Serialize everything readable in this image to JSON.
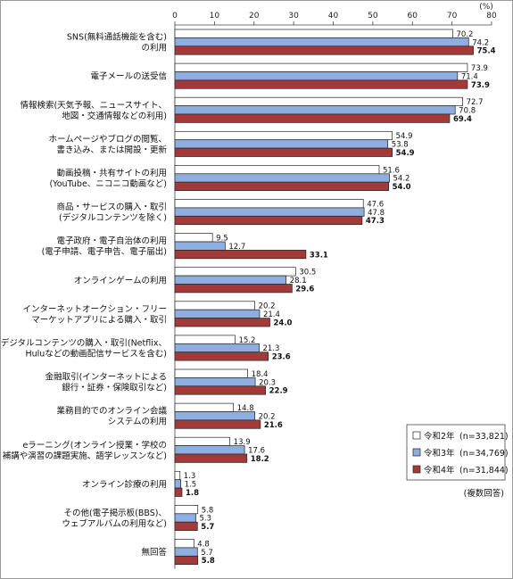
{
  "chart_data": {
    "type": "bar",
    "orientation": "horizontal",
    "unit": "(%)",
    "note": "(複数回答)",
    "xlim": [
      0,
      80
    ],
    "xticks": [
      0,
      10,
      20,
      30,
      40,
      50,
      60,
      70,
      80
    ],
    "grid": false,
    "legend_position": "right",
    "categories": [
      [
        "SNS(無料通話機能を含む)",
        "の利用"
      ],
      [
        "電子メールの送受信"
      ],
      [
        "情報検索(天気予報、ニュースサイト、",
        "地図・交通情報などの利用)"
      ],
      [
        "ホームページやブログの閲覧、",
        "書き込み、または開設・更新"
      ],
      [
        "動画投稿・共有サイトの利用",
        "(YouTube、ニコニコ動画など)"
      ],
      [
        "商品・サービスの購入・取引",
        "(デジタルコンテンツを除く)"
      ],
      [
        "電子政府・電子自治体の利用",
        "(電子申請、電子申告、電子届出)"
      ],
      [
        "オンラインゲームの利用"
      ],
      [
        "インターネットオークション・フリー",
        "マーケットアプリによる購入・取引"
      ],
      [
        "デジタルコンテンツの購入・取引(Netflix、",
        "Huluなどの動画配信サービスを含む)"
      ],
      [
        "金融取引(インターネットによる",
        "銀行・証券・保険取引など)"
      ],
      [
        "業務目的でのオンライン会議",
        "システムの利用"
      ],
      [
        "eラーニング(オンライン授業・学校の",
        "補講や演習の課題実施、語学レッスンなど)"
      ],
      [
        "オンライン診療の利用"
      ],
      [
        "その他(電子掲示板(BBS)、",
        "ウェブアルバムの利用など)"
      ],
      [
        "無回答"
      ]
    ],
    "series": [
      {
        "name": "令和2年",
        "n": "(n=33,821)",
        "color": "#ffffff",
        "values": [
          70.2,
          73.9,
          72.7,
          54.9,
          51.6,
          47.6,
          9.5,
          30.5,
          20.2,
          15.2,
          18.4,
          14.8,
          13.9,
          1.3,
          5.8,
          4.8
        ]
      },
      {
        "name": "令和3年",
        "n": "(n=34,769)",
        "color": "#8eaedf",
        "values": [
          74.2,
          71.4,
          70.8,
          53.8,
          54.2,
          47.8,
          12.7,
          28.1,
          21.4,
          21.3,
          20.3,
          20.2,
          17.6,
          1.5,
          5.3,
          5.7
        ]
      },
      {
        "name": "令和4年",
        "n": "(n=31,844)",
        "color": "#a33a3a",
        "values": [
          75.4,
          73.9,
          69.4,
          54.9,
          54.0,
          47.3,
          33.1,
          29.6,
          24.0,
          23.6,
          22.9,
          21.6,
          18.2,
          1.8,
          5.7,
          5.8
        ]
      }
    ]
  }
}
